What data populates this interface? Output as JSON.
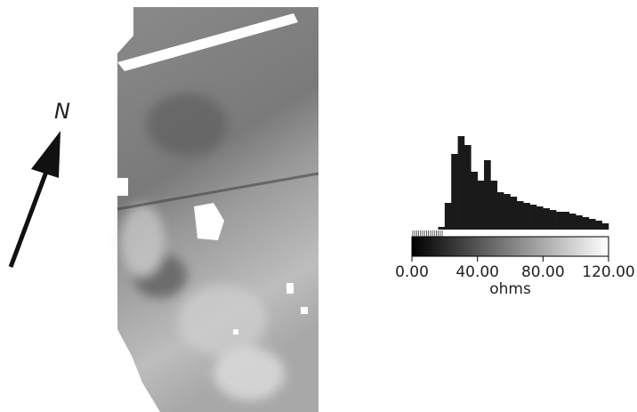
{
  "north_label": "N",
  "chart_data": {
    "type": "histogram",
    "color": "#1a1a1a",
    "bins": [
      16,
      20,
      24,
      28,
      32,
      36,
      40,
      44,
      48,
      52,
      56,
      60,
      64,
      68,
      72,
      76,
      80,
      84,
      88,
      92,
      96,
      100,
      104,
      108,
      112,
      116,
      120
    ],
    "values": [
      3,
      30,
      85,
      105,
      95,
      65,
      55,
      78,
      55,
      42,
      40,
      37,
      32,
      30,
      28,
      26,
      24,
      22,
      20,
      20,
      18,
      16,
      14,
      12,
      10,
      7
    ],
    "xlim": [
      0,
      120
    ],
    "xticks": [
      {
        "value": 0,
        "label": "0.00"
      },
      {
        "value": 40,
        "label": "40.00"
      },
      {
        "value": 80,
        "label": "80.00"
      },
      {
        "value": 120,
        "label": "120.00"
      }
    ],
    "xlabel": "ohms"
  }
}
